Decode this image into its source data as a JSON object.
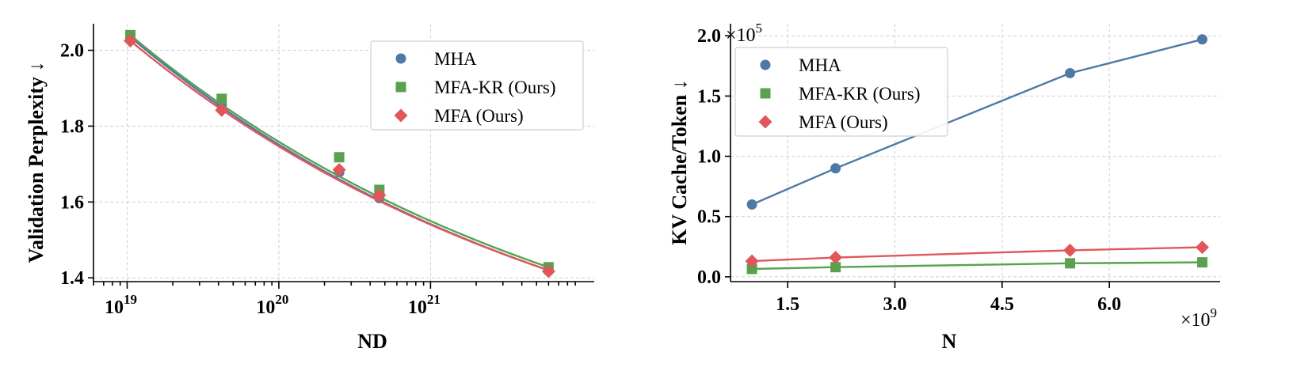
{
  "colors": {
    "MHA": "#4e79a7",
    "MFA-KR (Ours)": "#59a14f",
    "MFA (Ours)": "#e15759"
  },
  "chart_data": [
    {
      "type": "line",
      "title": "",
      "xlabel": "ND",
      "ylabel": "Validation Perplexity ↓",
      "xscale": "log",
      "xlim": [
        6e+18,
        1.2e+22
      ],
      "ylim": [
        1.39,
        2.07
      ],
      "xticks": [
        {
          "value": 1e+19,
          "base": "10",
          "exp": "19"
        },
        {
          "value": 1e+20,
          "base": "10",
          "exp": "20"
        },
        {
          "value": 1e+21,
          "base": "10",
          "exp": "21"
        }
      ],
      "yticks": [
        {
          "value": 1.4,
          "label": "1.4"
        },
        {
          "value": 1.6,
          "label": "1.6"
        },
        {
          "value": 1.8,
          "label": "1.8"
        },
        {
          "value": 2.0,
          "label": "2.0"
        }
      ],
      "grid": true,
      "legend": "top-right",
      "series": [
        {
          "name": "MHA",
          "marker": "circle",
          "points": [
            [
              1.05e+19,
              2.03
            ],
            [
              4.2e+19,
              1.855
            ],
            [
              2.5e+20,
              1.678
            ],
            [
              4.6e+20,
              1.61
            ],
            [
              6e+21,
              1.418
            ]
          ],
          "fit": [
            2.035,
            1.42
          ]
        },
        {
          "name": "MFA-KR (Ours)",
          "marker": "square",
          "points": [
            [
              1.05e+19,
              2.04
            ],
            [
              4.2e+19,
              1.872
            ],
            [
              2.5e+20,
              1.718
            ],
            [
              4.6e+20,
              1.632
            ],
            [
              6e+21,
              1.428
            ]
          ],
          "fit": [
            2.04,
            1.428
          ]
        },
        {
          "name": "MFA (Ours)",
          "marker": "diamond",
          "points": [
            [
              1.05e+19,
              2.025
            ],
            [
              4.2e+19,
              1.842
            ],
            [
              2.5e+20,
              1.685
            ],
            [
              4.6e+20,
              1.618
            ],
            [
              6e+21,
              1.417
            ]
          ],
          "fit": [
            2.025,
            1.42
          ]
        }
      ]
    },
    {
      "type": "line",
      "title": "",
      "xlabel": "N",
      "ylabel": "KV Cache/Token ↓",
      "x_multiplier": {
        "base": "×10",
        "exp": "9"
      },
      "y_multiplier": {
        "base": "×10",
        "exp": "5"
      },
      "xlim": [
        0.7,
        7.55
      ],
      "ylim": [
        -0.04,
        2.1
      ],
      "xticks": [
        {
          "value": 1.5,
          "label": "1.5"
        },
        {
          "value": 3.0,
          "label": "3.0"
        },
        {
          "value": 4.5,
          "label": "4.5"
        },
        {
          "value": 6.0,
          "label": "6.0"
        }
      ],
      "yticks": [
        {
          "value": 0.0,
          "label": "0.0"
        },
        {
          "value": 0.5,
          "label": "0.5"
        },
        {
          "value": 1.0,
          "label": "1.0"
        },
        {
          "value": 1.5,
          "label": "1.5"
        },
        {
          "value": 2.0,
          "label": "2.0"
        }
      ],
      "grid": true,
      "legend": "top-left",
      "series": [
        {
          "name": "MHA",
          "marker": "circle",
          "points": [
            [
              1.0,
              0.6
            ],
            [
              2.17,
              0.9
            ],
            [
              5.45,
              1.69
            ],
            [
              7.3,
              1.97
            ]
          ]
        },
        {
          "name": "MFA-KR (Ours)",
          "marker": "square",
          "points": [
            [
              1.0,
              0.065
            ],
            [
              2.17,
              0.08
            ],
            [
              5.45,
              0.112
            ],
            [
              7.3,
              0.12
            ]
          ]
        },
        {
          "name": "MFA (Ours)",
          "marker": "diamond",
          "points": [
            [
              1.0,
              0.13
            ],
            [
              2.17,
              0.16
            ],
            [
              5.45,
              0.22
            ],
            [
              7.3,
              0.245
            ]
          ]
        }
      ]
    }
  ]
}
